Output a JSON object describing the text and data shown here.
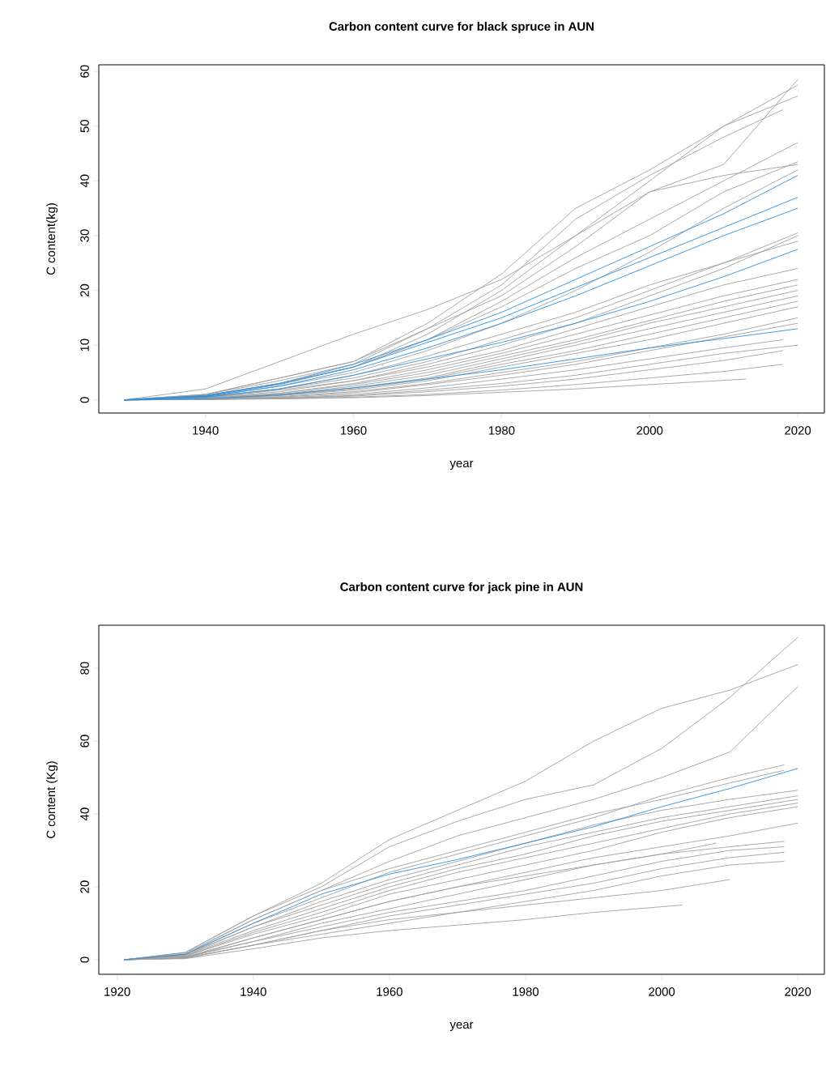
{
  "chart_data": [
    {
      "type": "line",
      "title": "Carbon content curve for black spruce in AUN",
      "xlabel": "year",
      "ylabel": "C content(kg)",
      "xlim": [
        1925.6,
        2023.6
      ],
      "ylim": [
        -2.4,
        61.2
      ],
      "xticks": [
        1940,
        1960,
        1980,
        2000,
        2020
      ],
      "yticks": [
        0,
        10,
        20,
        30,
        40,
        50,
        60
      ],
      "series": [
        {
          "color": "#a0a0a0",
          "x": [
            1929,
            1940,
            1950,
            1960,
            1970,
            1980,
            1990,
            2000,
            2010,
            2020
          ],
          "values": [
            0,
            2,
            7,
            12,
            16.5,
            22,
            30,
            40,
            50,
            55.5
          ]
        },
        {
          "color": "#a0a0a0",
          "x": [
            1929,
            1940,
            1950,
            1960,
            1970,
            1980,
            1990,
            2000,
            2010,
            2020
          ],
          "values": [
            0,
            1,
            4,
            7,
            14,
            23,
            35,
            42,
            50,
            57.5
          ]
        },
        {
          "color": "#a0a0a0",
          "x": [
            1929,
            1940,
            1950,
            1960,
            1970,
            1980,
            1990,
            2000,
            2010,
            2020
          ],
          "values": [
            0,
            0.8,
            3,
            6,
            12,
            20,
            30,
            38,
            43,
            58.5
          ]
        },
        {
          "color": "#a0a0a0",
          "x": [
            1929,
            1940,
            1950,
            1960,
            1970,
            1980,
            1990,
            2000,
            2010,
            2018
          ],
          "values": [
            0,
            1,
            3.5,
            6.5,
            13,
            21,
            33,
            41,
            48,
            53
          ]
        },
        {
          "color": "#a0a0a0",
          "x": [
            1929,
            1940,
            1950,
            1960,
            1970,
            1980,
            1990,
            2000,
            2010,
            2020
          ],
          "values": [
            0,
            0.8,
            3,
            6,
            11,
            18,
            26,
            33,
            40,
            47
          ]
        },
        {
          "color": "#a0a0a0",
          "x": [
            1929,
            1940,
            1950,
            1960,
            1970,
            1980,
            1990,
            2000,
            2010,
            2020
          ],
          "values": [
            0,
            0.7,
            3,
            6,
            11,
            17,
            24,
            30,
            38,
            43.5
          ]
        },
        {
          "color": "#a0a0a0",
          "x": [
            1929,
            1940,
            1950,
            1960,
            1970,
            1980,
            1990,
            2000,
            2010,
            2020
          ],
          "values": [
            0,
            1,
            4,
            7,
            13,
            19,
            28,
            38,
            41,
            43
          ]
        },
        {
          "color": "#a0a0a0",
          "x": [
            1929,
            1940,
            1950,
            1960,
            1970,
            1980,
            1990,
            2000,
            2010,
            2020
          ],
          "values": [
            0,
            0.6,
            2.5,
            5,
            9,
            14,
            20,
            27,
            35,
            42
          ]
        },
        {
          "color": "#a0a0a0",
          "x": [
            1929,
            1940,
            1950,
            1960,
            1970,
            1980,
            1990,
            2000,
            2010,
            2020
          ],
          "values": [
            0,
            0.5,
            2,
            4,
            7,
            11,
            15,
            20,
            25,
            30.5
          ]
        },
        {
          "color": "#a0a0a0",
          "x": [
            1929,
            1940,
            1950,
            1960,
            1970,
            1980,
            1990,
            2000,
            2010,
            2020
          ],
          "values": [
            0,
            0.4,
            1.8,
            3.5,
            6.5,
            10,
            14,
            19,
            24,
            30
          ]
        },
        {
          "color": "#a0a0a0",
          "x": [
            1929,
            1940,
            1950,
            1960,
            1970,
            1980,
            1990,
            2000,
            2010,
            2020
          ],
          "values": [
            0,
            0.5,
            2,
            4.5,
            8,
            12,
            16,
            21,
            25,
            29
          ]
        },
        {
          "color": "#a0a0a0",
          "x": [
            1929,
            1940,
            1950,
            1960,
            1970,
            1980,
            1990,
            2000,
            2010,
            2020
          ],
          "values": [
            0,
            0.4,
            1.5,
            3.5,
            6,
            9,
            13,
            17,
            21,
            24
          ]
        },
        {
          "color": "#a0a0a0",
          "x": [
            1929,
            1940,
            1950,
            1960,
            1970,
            1980,
            1990,
            2000,
            2010,
            2020
          ],
          "values": [
            0,
            0.3,
            1.2,
            3,
            5.5,
            8.5,
            12,
            15.5,
            19,
            22
          ]
        },
        {
          "color": "#a0a0a0",
          "x": [
            1929,
            1940,
            1950,
            1960,
            1970,
            1980,
            1990,
            2000,
            2010,
            2020
          ],
          "values": [
            0,
            0.3,
            1.2,
            2.8,
            5,
            8,
            11,
            14.5,
            18,
            21
          ]
        },
        {
          "color": "#a0a0a0",
          "x": [
            1929,
            1940,
            1950,
            1960,
            1970,
            1980,
            1990,
            2000,
            2010,
            2020
          ],
          "values": [
            0,
            0.3,
            1,
            2.5,
            4.5,
            7.5,
            10.5,
            14,
            17,
            20
          ]
        },
        {
          "color": "#a0a0a0",
          "x": [
            1929,
            1940,
            1950,
            1960,
            1970,
            1980,
            1990,
            2000,
            2010,
            2020
          ],
          "values": [
            0,
            0.2,
            1,
            2.2,
            4,
            7,
            10,
            13,
            16,
            19
          ]
        },
        {
          "color": "#a0a0a0",
          "x": [
            1929,
            1940,
            1950,
            1960,
            1970,
            1980,
            1990,
            2000,
            2010,
            2020
          ],
          "values": [
            0,
            0.2,
            0.8,
            2,
            3.8,
            6.5,
            9,
            12,
            15,
            18
          ]
        },
        {
          "color": "#a0a0a0",
          "x": [
            1929,
            1940,
            1950,
            1960,
            1970,
            1980,
            1990,
            2000,
            2010,
            2020
          ],
          "values": [
            0,
            0.2,
            0.8,
            1.8,
            3.5,
            6,
            8.5,
            11,
            14,
            17
          ]
        },
        {
          "color": "#a0a0a0",
          "x": [
            1929,
            1940,
            1950,
            1960,
            1970,
            1980,
            1990,
            2000,
            2010,
            2020
          ],
          "values": [
            0,
            0.2,
            0.6,
            1.5,
            3,
            5,
            7,
            9.5,
            12,
            15
          ]
        },
        {
          "color": "#a0a0a0",
          "x": [
            1929,
            1940,
            1950,
            1960,
            1970,
            1980,
            1990,
            2000,
            2010,
            2020
          ],
          "values": [
            0,
            0.1,
            0.5,
            1.3,
            2.8,
            4.5,
            6.5,
            9,
            11.5,
            14
          ]
        },
        {
          "color": "#a0a0a0",
          "x": [
            1929,
            1940,
            1950,
            1960,
            1970,
            1980,
            1990,
            2000,
            2010,
            2018
          ],
          "values": [
            0,
            0.1,
            0.4,
            1,
            2.2,
            3.8,
            5.5,
            7.5,
            9.5,
            11
          ]
        },
        {
          "color": "#a0a0a0",
          "x": [
            1929,
            1940,
            1950,
            1960,
            1970,
            1980,
            1990,
            2000,
            2010,
            2020
          ],
          "values": [
            0,
            0.1,
            0.3,
            0.8,
            1.8,
            3,
            4.5,
            6.5,
            8.5,
            10
          ]
        },
        {
          "color": "#a0a0a0",
          "x": [
            1929,
            1940,
            1950,
            1960,
            1970,
            1980,
            1990,
            2000,
            2010,
            2018
          ],
          "values": [
            0,
            0.1,
            0.3,
            0.7,
            1.5,
            2.5,
            3.8,
            5.5,
            7.2,
            9
          ]
        },
        {
          "color": "#a0a0a0",
          "x": [
            1929,
            1940,
            1950,
            1960,
            1970,
            1980,
            1990,
            2000,
            2010,
            2018
          ],
          "values": [
            0,
            0.1,
            0.2,
            0.5,
            1,
            1.8,
            2.8,
            4,
            5.2,
            6.5
          ]
        },
        {
          "color": "#a0a0a0",
          "x": [
            1929,
            1940,
            1950,
            1960,
            1970,
            1980,
            1990,
            2000,
            2013
          ],
          "values": [
            0,
            0.1,
            0.2,
            0.4,
            0.8,
            1.4,
            2,
            2.8,
            3.8
          ]
        },
        {
          "color": "#2b8fe0",
          "x": [
            1929,
            1940,
            1950,
            1960,
            1970,
            1980,
            1990,
            2000,
            2010,
            2020
          ],
          "values": [
            0,
            0.8,
            3,
            6.5,
            11,
            16,
            22,
            28,
            34,
            41
          ]
        },
        {
          "color": "#2b8fe0",
          "x": [
            1929,
            1940,
            1950,
            1960,
            1970,
            1980,
            1990,
            2000,
            2010,
            2020
          ],
          "values": [
            0,
            0.7,
            2.8,
            6,
            10.5,
            15,
            20.5,
            26,
            31.5,
            37
          ]
        },
        {
          "color": "#2b8fe0",
          "x": [
            1929,
            1940,
            1950,
            1960,
            1970,
            1980,
            1990,
            2000,
            2010,
            2020
          ],
          "values": [
            0,
            0.6,
            2.5,
            5.5,
            9.5,
            14,
            19,
            24.5,
            30,
            35
          ]
        },
        {
          "color": "#2b8fe0",
          "x": [
            1929,
            1940,
            1950,
            1960,
            1970,
            1980,
            1990,
            2000,
            2010,
            2020
          ],
          "values": [
            0,
            0.5,
            2,
            4.5,
            7.5,
            10.5,
            14,
            18,
            22.5,
            27.5
          ]
        },
        {
          "color": "#2b8fe0",
          "x": [
            1929,
            1940,
            1950,
            1960,
            1970,
            1980,
            1990,
            2000,
            2010,
            2020
          ],
          "values": [
            0,
            0.2,
            0.9,
            2.2,
            3.8,
            5.5,
            7.5,
            9.5,
            11.2,
            13
          ]
        }
      ]
    },
    {
      "type": "line",
      "title": "Carbon content curve for jack pine in AUN",
      "xlabel": "year",
      "ylabel": "C content (Kg)",
      "xlim": [
        1917.3,
        2023.9
      ],
      "ylim": [
        -4,
        91.8
      ],
      "xticks": [
        1920,
        1940,
        1960,
        1980,
        2000,
        2020
      ],
      "yticks": [
        0,
        20,
        40,
        60,
        80
      ],
      "series": [
        {
          "color": "#a0a0a0",
          "x": [
            1921,
            1930,
            1940,
            1950,
            1960,
            1970,
            1980,
            1990,
            2000,
            2010,
            2020
          ],
          "values": [
            0,
            2,
            12,
            21,
            33,
            41,
            49,
            60,
            69,
            74,
            81
          ]
        },
        {
          "color": "#a0a0a0",
          "x": [
            1921,
            1930,
            1940,
            1950,
            1960,
            1970,
            1980,
            1990,
            2000,
            2010,
            2020
          ],
          "values": [
            0,
            2,
            12,
            20,
            31,
            38,
            44,
            48,
            58,
            72,
            88.5
          ]
        },
        {
          "color": "#a0a0a0",
          "x": [
            1921,
            1930,
            1940,
            1950,
            1960,
            1970,
            1980,
            1990,
            2000,
            2010,
            2020
          ],
          "values": [
            0,
            1.8,
            11,
            19,
            27,
            34,
            39,
            44,
            50,
            57,
            75
          ]
        },
        {
          "color": "#a0a0a0",
          "x": [
            1921,
            1930,
            1940,
            1950,
            1960,
            1970,
            1980,
            1990,
            2000,
            2010,
            2018
          ],
          "values": [
            0,
            1.5,
            10,
            17,
            24,
            29,
            34,
            39,
            45,
            50,
            53.5
          ]
        },
        {
          "color": "#a0a0a0",
          "x": [
            1921,
            1930,
            1940,
            1950,
            1960,
            1970,
            1980,
            1990,
            2000,
            2010,
            2018
          ],
          "values": [
            0,
            1.5,
            11,
            19,
            25,
            30,
            35,
            40,
            44,
            48.5,
            52
          ]
        },
        {
          "color": "#a0a0a0",
          "x": [
            1921,
            1930,
            1940,
            1950,
            1960,
            1970,
            1980,
            1990,
            2000,
            2010,
            2020
          ],
          "values": [
            0,
            1.5,
            9,
            16,
            22,
            27,
            32,
            37,
            41,
            44,
            46.5
          ]
        },
        {
          "color": "#a0a0a0",
          "x": [
            1921,
            1930,
            1940,
            1950,
            1960,
            1970,
            1980,
            1990,
            2000,
            2010,
            2020
          ],
          "values": [
            0,
            1.2,
            9,
            15,
            21,
            26,
            31,
            35,
            39,
            42,
            45
          ]
        },
        {
          "color": "#a0a0a0",
          "x": [
            1921,
            1930,
            1940,
            1950,
            1960,
            1970,
            1980,
            1990,
            2000,
            2010,
            2020
          ],
          "values": [
            0,
            1.2,
            8,
            14,
            20,
            25,
            29,
            34,
            38,
            41,
            44
          ]
        },
        {
          "color": "#a0a0a0",
          "x": [
            1921,
            1930,
            1940,
            1950,
            1960,
            1970,
            1980,
            1990,
            2000,
            2010,
            2020
          ],
          "values": [
            0,
            1,
            7.5,
            13,
            19,
            24,
            28,
            32,
            36,
            40,
            43
          ]
        },
        {
          "color": "#a0a0a0",
          "x": [
            1921,
            1930,
            1940,
            1950,
            1960,
            1970,
            1980,
            1990,
            2000,
            2010,
            2020
          ],
          "values": [
            0,
            1,
            7,
            12,
            18,
            22,
            26,
            30,
            35,
            39,
            42
          ]
        },
        {
          "color": "#a0a0a0",
          "x": [
            1921,
            1930,
            1940,
            1950,
            1960,
            1970,
            1980,
            1990,
            2000,
            2010,
            2020
          ],
          "values": [
            0,
            0.8,
            6,
            11,
            16,
            20,
            24,
            28,
            31,
            34,
            37.5
          ]
        },
        {
          "color": "#a0a0a0",
          "x": [
            1921,
            1930,
            1940,
            1950,
            1960,
            1970,
            1980,
            1990,
            2000,
            2010,
            2018
          ],
          "values": [
            0,
            0.8,
            5,
            10,
            14,
            18,
            22,
            26,
            29,
            31,
            32.5
          ]
        },
        {
          "color": "#a0a0a0",
          "x": [
            1921,
            1930,
            1940,
            1950,
            1960,
            1970,
            1980,
            1990,
            2000,
            2010,
            2018
          ],
          "values": [
            0,
            0.6,
            5,
            9,
            13,
            16,
            19,
            23,
            27,
            30,
            31
          ]
        },
        {
          "color": "#a0a0a0",
          "x": [
            1921,
            1930,
            1940,
            1950,
            1960,
            1970,
            1980,
            1990,
            2000,
            2010,
            2018
          ],
          "values": [
            0,
            0.5,
            4,
            8,
            12,
            15,
            18,
            21,
            25,
            28,
            29.5
          ]
        },
        {
          "color": "#a0a0a0",
          "x": [
            1921,
            1930,
            1940,
            1950,
            1960,
            1970,
            1980,
            1990,
            2000,
            2010,
            2018
          ],
          "values": [
            0,
            0.5,
            4,
            7,
            10,
            13,
            16,
            19,
            23,
            26,
            27
          ]
        },
        {
          "color": "#a0a0a0",
          "x": [
            1921,
            1930,
            1940,
            1950,
            1960,
            1970,
            1980,
            1990,
            2000,
            2008
          ],
          "values": [
            0,
            0.5,
            6,
            11,
            16,
            20,
            23,
            26,
            29,
            32
          ]
        },
        {
          "color": "#a0a0a0",
          "x": [
            1921,
            1930,
            1940,
            1950,
            1960,
            1970,
            1980,
            1990,
            2000,
            2010
          ],
          "values": [
            0,
            0.4,
            4,
            8,
            11,
            13,
            15,
            17,
            19,
            22
          ]
        },
        {
          "color": "#a0a0a0",
          "x": [
            1921,
            1930,
            1940,
            1950,
            1960,
            1970,
            1980,
            1990,
            2003
          ],
          "values": [
            0,
            0.3,
            3,
            6,
            8,
            9.5,
            11,
            13,
            15
          ]
        },
        {
          "color": "#2b8fe0",
          "x": [
            1921,
            1930,
            1940,
            1950,
            1960,
            1970,
            1980,
            1990,
            2000,
            2010,
            2020
          ],
          "values": [
            0,
            1.5,
            10,
            18,
            23.5,
            27.5,
            32,
            36.5,
            42,
            47,
            52.5
          ]
        }
      ]
    }
  ]
}
